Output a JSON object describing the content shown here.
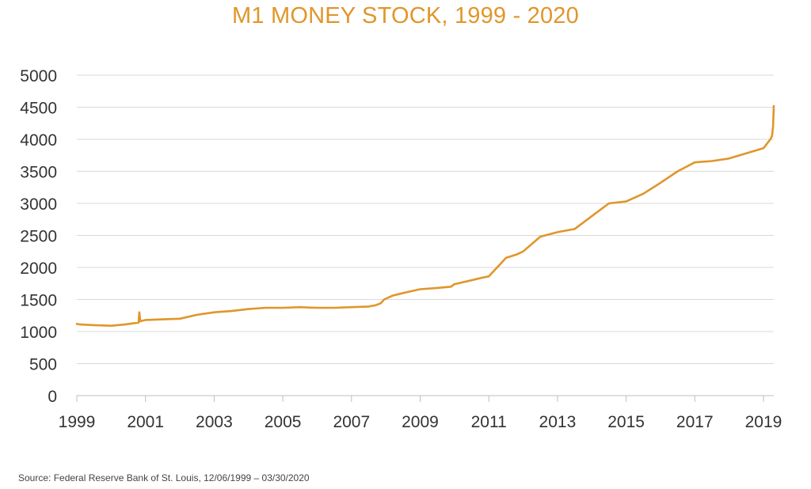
{
  "title": "M1 MONEY STOCK, 1999 - 2020",
  "source": "Source: Federal Reserve Bank of St. Louis, 12/06/1999 – 03/30/2020",
  "colors": {
    "series": "#E0962A",
    "title": "#E0962A",
    "grid": "#D9D9D9",
    "axis": "#BFBFBF"
  },
  "chart_data": {
    "type": "line",
    "title": "M1 MONEY STOCK, 1999 - 2020",
    "xlabel": "",
    "ylabel": "",
    "xlim": [
      1999,
      2019.3
    ],
    "ylim": [
      0,
      5000
    ],
    "yticks": [
      0,
      500,
      1000,
      1500,
      2000,
      2500,
      3000,
      3500,
      4000,
      4500,
      5000
    ],
    "xticks": [
      1999,
      2001,
      2003,
      2005,
      2007,
      2009,
      2011,
      2013,
      2015,
      2017,
      2019
    ],
    "grid": "horizontal",
    "legend": "none",
    "series": [
      {
        "x": [
          1999.0,
          1999.1,
          1999.5,
          2000.0,
          2000.4,
          2000.8,
          2000.82,
          2000.85,
          2001.0,
          2001.5,
          2002.0,
          2002.5,
          2003.0,
          2003.5,
          2004.0,
          2004.5,
          2005.0,
          2005.5,
          2006.0,
          2006.5,
          2007.0,
          2007.5,
          2007.7,
          2007.85,
          2007.95,
          2008.2,
          2008.5,
          2009.0,
          2009.5,
          2009.9,
          2010.0,
          2010.5,
          2010.8,
          2011.0,
          2011.5,
          2011.8,
          2012.0,
          2012.5,
          2013.0,
          2013.5,
          2014.0,
          2014.5,
          2015.0,
          2015.5,
          2016.0,
          2016.5,
          2017.0,
          2017.5,
          2018.0,
          2018.5,
          2019.0,
          2019.2,
          2019.25,
          2019.28,
          2019.3
        ],
        "y": [
          1120,
          1110,
          1100,
          1090,
          1110,
          1140,
          1300,
          1160,
          1180,
          1190,
          1200,
          1260,
          1300,
          1320,
          1350,
          1370,
          1370,
          1380,
          1370,
          1370,
          1380,
          1390,
          1410,
          1440,
          1500,
          1560,
          1600,
          1660,
          1680,
          1700,
          1740,
          1800,
          1840,
          1860,
          2150,
          2200,
          2250,
          2480,
          2550,
          2600,
          2800,
          3000,
          3030,
          3150,
          3320,
          3500,
          3640,
          3660,
          3700,
          3780,
          3860,
          4000,
          4050,
          4200,
          4520
        ]
      }
    ]
  }
}
